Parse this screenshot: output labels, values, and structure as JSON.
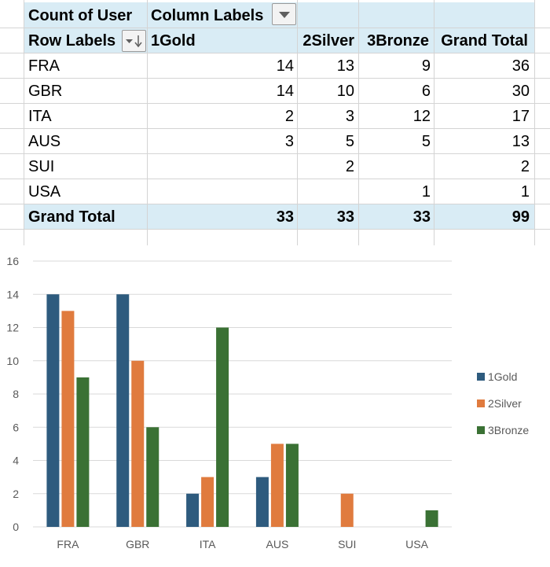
{
  "pivot": {
    "header": {
      "value_field": "Count of User",
      "column_labels": "Column Labels",
      "row_labels": "Row Labels",
      "columns": [
        "1Gold",
        "2Silver",
        "3Bronze",
        "Grand Total"
      ]
    },
    "rows": [
      {
        "label": "FRA",
        "values": [
          "14",
          "13",
          "9",
          "36"
        ]
      },
      {
        "label": "GBR",
        "values": [
          "14",
          "10",
          "6",
          "30"
        ]
      },
      {
        "label": "ITA",
        "values": [
          "2",
          "3",
          "12",
          "17"
        ]
      },
      {
        "label": "AUS",
        "values": [
          "3",
          "5",
          "5",
          "13"
        ]
      },
      {
        "label": "SUI",
        "values": [
          "",
          "2",
          "",
          "2"
        ]
      },
      {
        "label": "USA",
        "values": [
          "",
          "",
          "1",
          "1"
        ]
      }
    ],
    "grand_total": {
      "label": "Grand Total",
      "values": [
        "33",
        "33",
        "33",
        "99"
      ]
    }
  },
  "colors": {
    "header_fill": "#d9ecf5",
    "gold": "#2e5b7e",
    "silver": "#e07b3e",
    "bronze": "#3a7134",
    "axis_text": "#595959",
    "gridline": "#d9d9d9"
  },
  "chart_data": {
    "type": "bar",
    "categories": [
      "FRA",
      "GBR",
      "ITA",
      "AUS",
      "SUI",
      "USA"
    ],
    "series": [
      {
        "name": "1Gold",
        "values": [
          14,
          14,
          2,
          3,
          0,
          0
        ]
      },
      {
        "name": "2Silver",
        "values": [
          13,
          10,
          3,
          5,
          2,
          0
        ]
      },
      {
        "name": "3Bronze",
        "values": [
          9,
          6,
          12,
          5,
          0,
          1
        ]
      }
    ],
    "yticks": [
      "0",
      "2",
      "4",
      "6",
      "8",
      "10",
      "12",
      "14",
      "16"
    ],
    "ylim": [
      0,
      16
    ],
    "legend": "right",
    "title": "",
    "xlabel": "",
    "ylabel": ""
  }
}
